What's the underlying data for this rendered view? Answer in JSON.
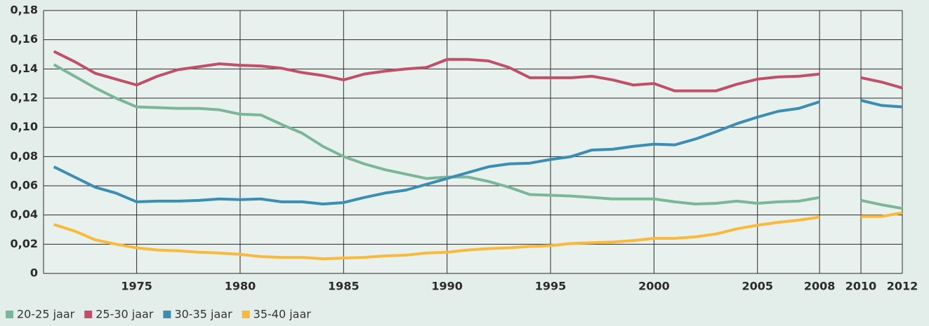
{
  "chart_data": {
    "type": "line",
    "x": [
      1971,
      1972,
      1973,
      1974,
      1975,
      1976,
      1977,
      1978,
      1979,
      1980,
      1981,
      1982,
      1983,
      1984,
      1985,
      1986,
      1987,
      1988,
      1989,
      1990,
      1991,
      1992,
      1993,
      1994,
      1995,
      1996,
      1997,
      1998,
      1999,
      2000,
      2001,
      2002,
      2003,
      2004,
      2005,
      2006,
      2007,
      2008,
      2009,
      2010,
      2011,
      2012
    ],
    "series": [
      {
        "name": "20-25 jaar",
        "color": "#7ab79a",
        "values": [
          0.143,
          0.135,
          0.127,
          0.12,
          0.114,
          0.1135,
          0.113,
          0.113,
          0.112,
          0.109,
          0.1085,
          0.102,
          0.096,
          0.087,
          0.08,
          0.075,
          0.071,
          0.068,
          0.065,
          0.066,
          0.066,
          0.063,
          0.059,
          0.054,
          0.0535,
          0.053,
          0.052,
          0.051,
          0.051,
          0.051,
          0.049,
          0.0475,
          0.048,
          0.0495,
          0.048,
          0.049,
          0.0495,
          0.052,
          null,
          0.05,
          0.047,
          0.0445
        ]
      },
      {
        "name": "25-30 jaar",
        "color": "#c24f6a",
        "values": [
          0.152,
          0.145,
          0.137,
          0.133,
          0.129,
          0.135,
          0.1395,
          0.1415,
          0.1435,
          0.1425,
          0.142,
          0.1405,
          0.1375,
          0.1355,
          0.1325,
          0.1365,
          0.1385,
          0.14,
          0.141,
          0.1465,
          0.1465,
          0.1455,
          0.141,
          0.134,
          0.134,
          0.134,
          0.135,
          0.1325,
          0.129,
          0.13,
          0.125,
          0.125,
          0.125,
          0.1295,
          0.133,
          0.1345,
          0.135,
          0.1365,
          null,
          0.134,
          0.131,
          0.127
        ]
      },
      {
        "name": "30-35 jaar",
        "color": "#3b8db4",
        "values": [
          0.073,
          0.066,
          0.059,
          0.055,
          0.049,
          0.0495,
          0.0495,
          0.05,
          0.051,
          0.0505,
          0.051,
          0.049,
          0.049,
          0.0475,
          0.0485,
          0.052,
          0.055,
          0.057,
          0.061,
          0.065,
          0.069,
          0.073,
          0.075,
          0.0755,
          0.078,
          0.08,
          0.0845,
          0.085,
          0.087,
          0.0885,
          0.088,
          0.092,
          0.097,
          0.1025,
          0.107,
          0.111,
          0.113,
          0.1175,
          null,
          0.1185,
          0.115,
          0.114
        ]
      },
      {
        "name": "35-40 jaar",
        "color": "#fbb93b",
        "values": [
          0.0335,
          0.029,
          0.023,
          0.02,
          0.0175,
          0.016,
          0.0155,
          0.0145,
          0.014,
          0.013,
          0.0115,
          0.011,
          0.011,
          0.01,
          0.0105,
          0.011,
          0.012,
          0.0125,
          0.014,
          0.0145,
          0.016,
          0.017,
          0.0175,
          0.0185,
          0.019,
          0.0205,
          0.021,
          0.0215,
          0.0225,
          0.024,
          0.024,
          0.025,
          0.027,
          0.0305,
          0.033,
          0.035,
          0.0365,
          0.0385,
          null,
          0.039,
          0.039,
          0.0415
        ]
      }
    ],
    "xlim": [
      1970.5,
      2012
    ],
    "xticks": [
      1975,
      1980,
      1985,
      1990,
      1995,
      2000,
      2005,
      2008,
      2010,
      2012
    ],
    "ylim": [
      0,
      0.18
    ],
    "yticks": [
      0,
      {
        "value": 0.02,
        "label": "0,02"
      },
      {
        "value": 0.04,
        "label": "0,04"
      },
      {
        "value": 0.06,
        "label": "0,06"
      },
      {
        "value": 0.08,
        "label": "0,08"
      },
      {
        "value": 0.1,
        "label": "0,10"
      },
      {
        "value": 0.12,
        "label": "0,12"
      },
      {
        "value": 0.14,
        "label": "0,14"
      },
      {
        "value": 0.16,
        "label": "0,16"
      },
      {
        "value": 0.18,
        "label": "0,18"
      }
    ],
    "grid": true,
    "legend": "bottom"
  }
}
